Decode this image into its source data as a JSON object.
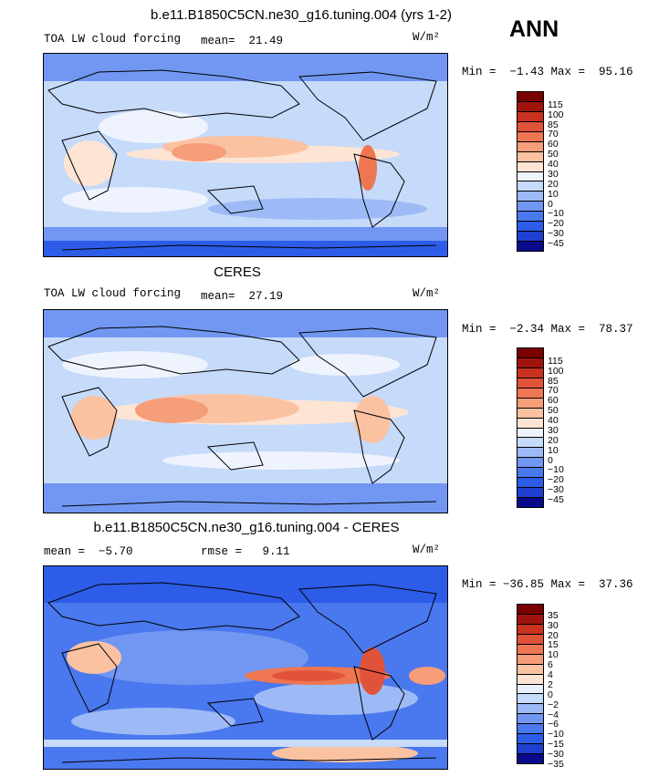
{
  "season": "ANN",
  "units": "W/m²",
  "palette_main": [
    "#0a0a8c",
    "#1f3fd1",
    "#2d5ce8",
    "#4a78ee",
    "#7297f2",
    "#9dbaf6",
    "#c6dafa",
    "#eef3fd",
    "#fde4d3",
    "#fbc2a2",
    "#f69d79",
    "#ee7651",
    "#e0533a",
    "#c8321f",
    "#a0140d",
    "#7a0000"
  ],
  "palette_diff": [
    "#0a0a8c",
    "#1f3fd1",
    "#2d5ce8",
    "#4a78ee",
    "#7297f2",
    "#9dbaf6",
    "#c6dafa",
    "#e8f0fd",
    "#fde4d3",
    "#fbc2a2",
    "#f69d79",
    "#ee7651",
    "#e0533a",
    "#c8321f",
    "#a0140d",
    "#7a0000"
  ],
  "panels": [
    {
      "title": "b.e11.B1850C5CN.ne30_g16.tuning.004 (yrs 1-2)",
      "left_label": "TOA LW cloud forcing",
      "stat_text": "mean=  21.49",
      "minmax_text": "Min =  −1.43 Max =  95.16",
      "levels": [
        "115",
        "100",
        "85",
        "70",
        "60",
        "50",
        "40",
        "30",
        "20",
        "10",
        "0",
        "−10",
        "−20",
        "−30",
        "−45"
      ]
    },
    {
      "title": "CERES",
      "left_label": "TOA LW cloud forcing",
      "stat_text": "mean=  27.19",
      "minmax_text": "Min =  −2.34 Max =  78.37",
      "levels": [
        "115",
        "100",
        "85",
        "70",
        "60",
        "50",
        "40",
        "30",
        "20",
        "10",
        "0",
        "−10",
        "−20",
        "−30",
        "−45"
      ]
    },
    {
      "title": "b.e11.B1850C5CN.ne30_g16.tuning.004 - CERES",
      "left_label": "mean =  −5.70",
      "stat_text": "rmse =   9.11",
      "minmax_text": "Min = −36.85 Max =  37.36",
      "levels": [
        "35",
        "30",
        "20",
        "15",
        "10",
        "6",
        "4",
        "2",
        "0",
        "−2",
        "−4",
        "−6",
        "−10",
        "−15",
        "−30",
        "−35"
      ]
    }
  ],
  "chart_data": [
    {
      "type": "heatmap",
      "title": "b.e11.B1850C5CN.ne30_g16.tuning.004 (yrs 1-2)",
      "variable": "TOA LW cloud forcing",
      "units": "W/m²",
      "mean": 21.49,
      "min": -1.43,
      "max": 95.16,
      "contour_levels": [
        -45,
        -30,
        -20,
        -10,
        0,
        10,
        20,
        30,
        40,
        50,
        60,
        70,
        85,
        100,
        115
      ]
    },
    {
      "type": "heatmap",
      "title": "CERES",
      "variable": "TOA LW cloud forcing",
      "units": "W/m²",
      "mean": 27.19,
      "min": -2.34,
      "max": 78.37,
      "contour_levels": [
        -45,
        -30,
        -20,
        -10,
        0,
        10,
        20,
        30,
        40,
        50,
        60,
        70,
        85,
        100,
        115
      ]
    },
    {
      "type": "heatmap",
      "title": "b.e11.B1850C5CN.ne30_g16.tuning.004 - CERES",
      "units": "W/m²",
      "mean": -5.7,
      "rmse": 9.11,
      "min": -36.85,
      "max": 37.36,
      "contour_levels": [
        -35,
        -30,
        -15,
        -10,
        -6,
        -4,
        -2,
        0,
        2,
        4,
        6,
        10,
        15,
        20,
        30,
        35
      ]
    }
  ]
}
